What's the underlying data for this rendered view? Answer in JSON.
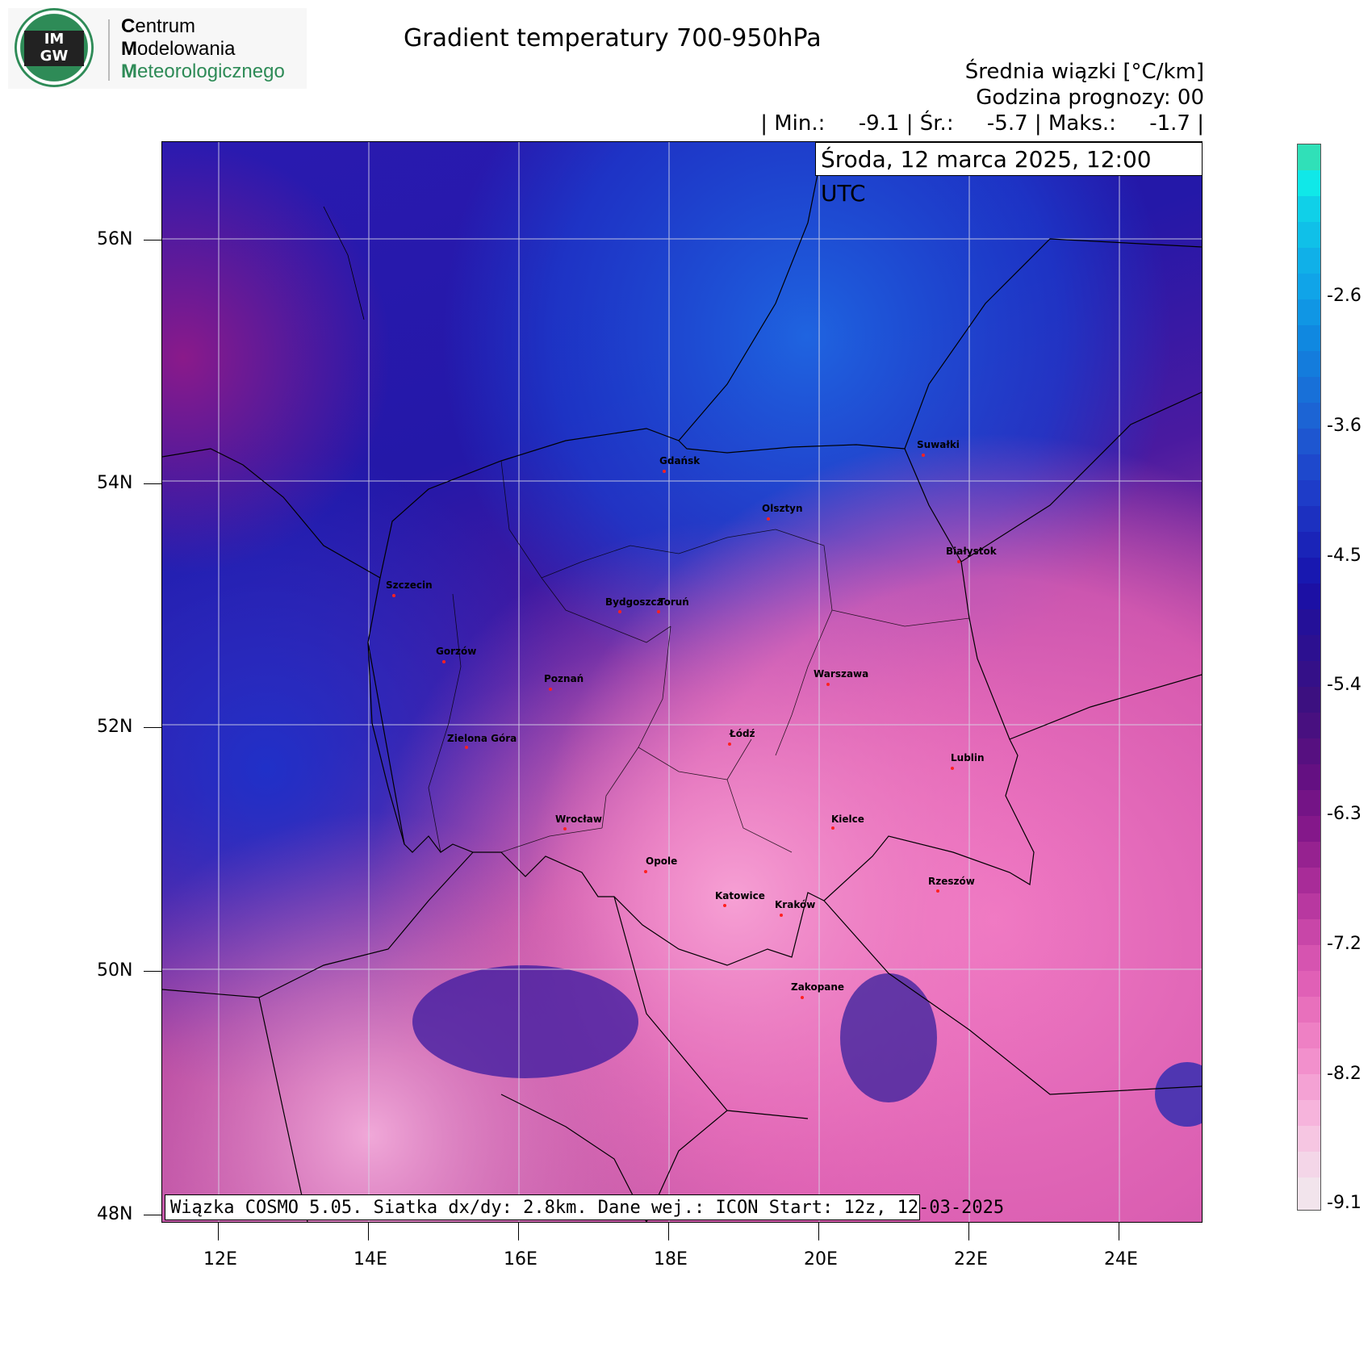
{
  "logo": {
    "mark_top": "IM",
    "mark_bottom": "GW",
    "line1_initial": "C",
    "line1_rest": "entrum",
    "line2_initial": "M",
    "line2_rest": "odelowania",
    "line3_initial": "M",
    "line3_rest": "eteorologicznego"
  },
  "header": {
    "title": "Gradient temperatury 700-950hPa",
    "subtitle_line1": "Średnia wiązki [°C/km]",
    "subtitle_line2": "Godzina prognozy: 00",
    "stats_line": "| Min.:     -9.1 | Śr.:     -5.7 | Maks.:     -1.7 |",
    "date": "Środa, 12 marca 2025, 12:00 UTC"
  },
  "footer_note": "Wiązka COSMO 5.05. Siatka dx/dy: 2.8km. Dane wej.: ICON Start: 12z, 12-03-2025",
  "map": {
    "lat_labels": [
      "56N",
      "54N",
      "52N",
      "50N",
      "48N"
    ],
    "lon_labels": [
      "12E",
      "14E",
      "16E",
      "18E",
      "20E",
      "22E",
      "24E"
    ],
    "cities": [
      {
        "name": "Gdańsk"
      },
      {
        "name": "Suwałki"
      },
      {
        "name": "Olsztyn"
      },
      {
        "name": "Białystok"
      },
      {
        "name": "Szczecin"
      },
      {
        "name": "Bydgoszcz"
      },
      {
        "name": "Toruń"
      },
      {
        "name": "Gorzów"
      },
      {
        "name": "Poznań"
      },
      {
        "name": "Warszawa"
      },
      {
        "name": "Łódź"
      },
      {
        "name": "Zielona Góra"
      },
      {
        "name": "Lublin"
      },
      {
        "name": "Wrocław"
      },
      {
        "name": "Kielce"
      },
      {
        "name": "Opole"
      },
      {
        "name": "Rzeszów"
      },
      {
        "name": "Katowice"
      },
      {
        "name": "Kraków"
      },
      {
        "name": "Zakopane"
      }
    ]
  },
  "colorbar": {
    "labels": [
      "-2.6",
      "-3.6",
      "-4.5",
      "-5.4",
      "-6.3",
      "-7.2",
      "-8.2",
      "-9.1"
    ]
  },
  "colors": {
    "deep_blue": "#1a1aa8",
    "light_blue": "#1f6fe0",
    "purple": "#5a1a9a",
    "magenta": "#e86ab8",
    "light_pink": "#f4b8dc"
  }
}
